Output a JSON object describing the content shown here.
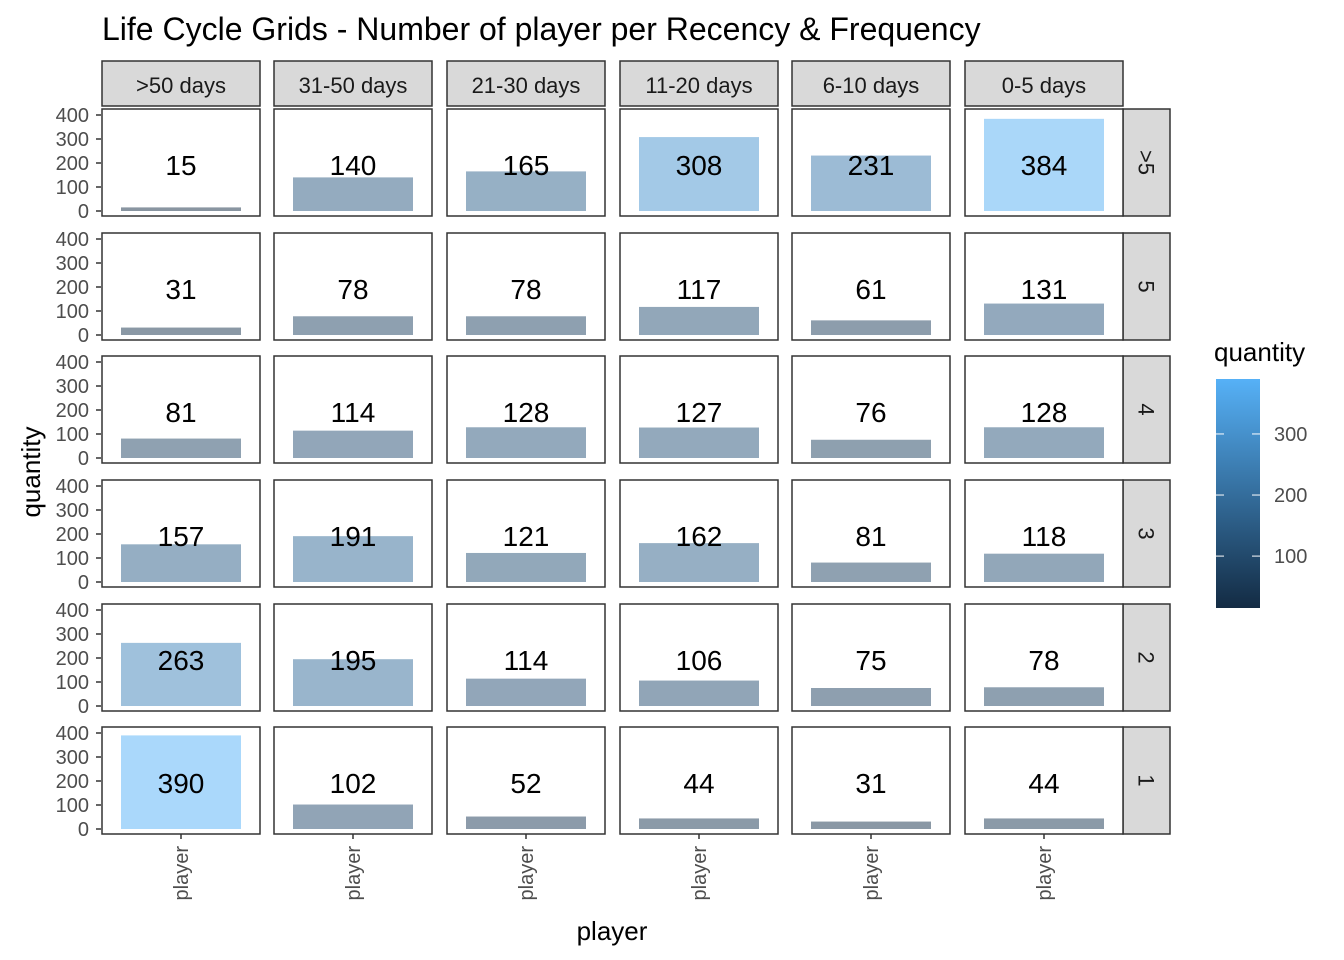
{
  "chart_data": {
    "type": "bar",
    "title": "Life Cycle Grids - Number of player per Recency & Frequency",
    "xlabel": "player",
    "ylabel": "quantity",
    "x_category": "player",
    "column_facets": [
      ">50 days",
      "31-50 days",
      "21-30 days",
      "11-20 days",
      "6-10 days",
      "0-5 days"
    ],
    "row_facets": [
      ">5",
      "5",
      "4",
      "3",
      "2",
      "1"
    ],
    "values": [
      [
        15,
        140,
        165,
        308,
        231,
        384
      ],
      [
        31,
        78,
        78,
        117,
        61,
        131
      ],
      [
        81,
        114,
        128,
        127,
        76,
        128
      ],
      [
        157,
        191,
        121,
        162,
        81,
        118
      ],
      [
        263,
        195,
        114,
        106,
        75,
        78
      ],
      [
        390,
        102,
        52,
        44,
        31,
        44
      ]
    ],
    "ylim": [
      0,
      400
    ],
    "y_ticks": [
      0,
      100,
      200,
      300,
      400
    ],
    "grid": false,
    "legend": {
      "title": "quantity",
      "placement": "right",
      "ticks": [
        100,
        200,
        300
      ],
      "range": [
        15,
        390
      ],
      "color_low": "#132b43",
      "color_high": "#56b1f7"
    },
    "bar_alpha": 0.5,
    "strip_fill": "#d9d9d9"
  }
}
